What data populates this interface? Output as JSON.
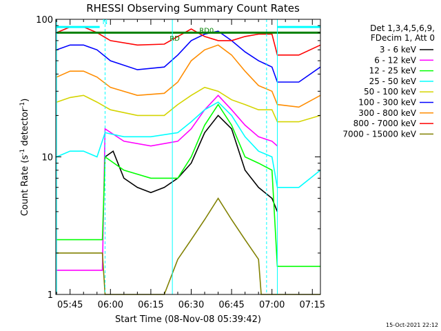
{
  "chart_data": {
    "type": "line",
    "title": "RHESSI Observing Summary Count Rates",
    "xlabel": "Start Time (08-Nov-08 05:39:42)",
    "ylabel_main": "Count Rate (s",
    "ylabel_sup1": "-1",
    "ylabel_mid": " detector",
    "ylabel_sup2": "-1",
    "ylabel_end": ")",
    "y_scale": "log",
    "ylim": [
      1,
      100
    ],
    "x_range_minutes": [
      "05:39:42",
      "07:18:00"
    ],
    "x_ticks": [
      "05:45",
      "06:00",
      "06:15",
      "06:30",
      "06:45",
      "07:00",
      "07:15"
    ],
    "y_ticks": [
      "1",
      "10",
      "100"
    ],
    "info_line1": "Det 1,3,4,5,6,9,",
    "info_line2": "FDecim 1, Att 0",
    "footer_date": "15-Oct-2021 22:12",
    "annotations": [
      {
        "label": "N",
        "color": "#00ffff",
        "x": "05:57",
        "y": 92
      },
      {
        "label": "RD",
        "color": "#008000",
        "x": "06:22",
        "y": 70
      },
      {
        "label": "RD0",
        "color": "#008000",
        "x": "06:33",
        "y": 80
      }
    ],
    "series": [
      {
        "name": "3 - 6 keV",
        "color": "#000000",
        "x": [
          "05:58",
          "06:01",
          "06:05",
          "06:10",
          "06:15",
          "06:20",
          "06:25",
          "06:30",
          "06:35",
          "06:40",
          "06:45",
          "06:50",
          "06:55",
          "07:00",
          "07:02"
        ],
        "y": [
          10,
          11,
          7,
          6,
          5.5,
          6,
          7,
          9,
          15,
          20,
          16,
          8,
          6,
          5,
          4
        ]
      },
      {
        "name": "6 - 12 keV",
        "color": "#ff00ff",
        "x": [
          "05:40",
          "05:50",
          "05:57",
          "05:58",
          "06:05",
          "06:15",
          "06:25",
          "06:30",
          "06:35",
          "06:40",
          "06:45",
          "06:50",
          "06:55",
          "07:00",
          "07:02"
        ],
        "y": [
          1.5,
          1.5,
          1.5,
          16,
          13,
          12,
          13,
          16,
          22,
          28,
          22,
          17,
          14,
          13,
          12
        ]
      },
      {
        "name": "12 - 25 keV",
        "color": "#00ff00",
        "x": [
          "05:40",
          "05:50",
          "05:57",
          "05:58",
          "06:05",
          "06:15",
          "06:25",
          "06:30",
          "06:35",
          "06:40",
          "06:45",
          "06:50",
          "06:55",
          "07:00",
          "07:02",
          "07:10",
          "07:18"
        ],
        "y": [
          2.5,
          2.5,
          2.5,
          10,
          8,
          7,
          7,
          10,
          17,
          24,
          17,
          10,
          9,
          8,
          1.6,
          1.6,
          1.6
        ]
      },
      {
        "name": "25 - 50 keV",
        "color": "#00ffff",
        "x": [
          "05:40",
          "05:45",
          "05:50",
          "05:55",
          "05:58",
          "06:05",
          "06:15",
          "06:25",
          "06:30",
          "06:35",
          "06:40",
          "06:45",
          "06:50",
          "06:55",
          "07:00",
          "07:02",
          "07:10",
          "07:18"
        ],
        "y": [
          10,
          11,
          11,
          10,
          15,
          14,
          14,
          15,
          18,
          22,
          25,
          20,
          14,
          11,
          10,
          6,
          6,
          8
        ]
      },
      {
        "name": "50 - 100 keV",
        "color": "#d4d400",
        "x": [
          "05:40",
          "05:45",
          "05:50",
          "05:55",
          "06:00",
          "06:10",
          "06:20",
          "06:25",
          "06:30",
          "06:35",
          "06:40",
          "06:45",
          "06:50",
          "06:55",
          "07:00",
          "07:02",
          "07:10",
          "07:18"
        ],
        "y": [
          25,
          27,
          28,
          25,
          22,
          20,
          20,
          24,
          28,
          32,
          30,
          26,
          24,
          22,
          22,
          18,
          18,
          20
        ]
      },
      {
        "name": "100 - 300 keV",
        "color": "#0000ff",
        "x": [
          "05:40",
          "05:45",
          "05:50",
          "05:55",
          "06:00",
          "06:10",
          "06:20",
          "06:25",
          "06:30",
          "06:35",
          "06:40",
          "06:45",
          "06:50",
          "06:55",
          "07:00",
          "07:02",
          "07:10",
          "07:18"
        ],
        "y": [
          60,
          65,
          65,
          60,
          50,
          43,
          45,
          55,
          70,
          78,
          82,
          70,
          58,
          50,
          45,
          35,
          35,
          45
        ]
      },
      {
        "name": "300 - 800 keV",
        "color": "#ff8c00",
        "x": [
          "05:40",
          "05:45",
          "05:50",
          "05:55",
          "06:00",
          "06:10",
          "06:20",
          "06:25",
          "06:30",
          "06:35",
          "06:40",
          "06:45",
          "06:50",
          "06:55",
          "07:00",
          "07:02",
          "07:10",
          "07:18"
        ],
        "y": [
          38,
          42,
          42,
          38,
          32,
          28,
          29,
          35,
          50,
          60,
          65,
          55,
          42,
          33,
          30,
          24,
          23,
          28
        ]
      },
      {
        "name": "800 - 7000 keV",
        "color": "#ff0000",
        "x": [
          "05:40",
          "05:45",
          "05:50",
          "05:55",
          "06:00",
          "06:10",
          "06:20",
          "06:25",
          "06:30",
          "06:35",
          "06:40",
          "06:45",
          "06:50",
          "06:55",
          "07:00",
          "07:02",
          "07:10",
          "07:18"
        ],
        "y": [
          80,
          88,
          88,
          80,
          70,
          65,
          66,
          75,
          85,
          75,
          70,
          70,
          75,
          78,
          78,
          55,
          55,
          65
        ]
      },
      {
        "name": "7000 - 15000 keV",
        "color": "#808000",
        "x": [
          "05:40",
          "05:50",
          "05:57",
          "05:58",
          "06:20",
          "06:25",
          "06:30",
          "06:35",
          "06:40",
          "06:45",
          "06:50",
          "06:55",
          "06:56",
          "07:18"
        ],
        "y": [
          2,
          2,
          2,
          1,
          1,
          1.8,
          2.5,
          3.5,
          5,
          3.5,
          2.5,
          1.8,
          1,
          1
        ]
      }
    ],
    "status_bars": [
      {
        "label": "RD0",
        "color": "#008000",
        "x_start": "05:39:42",
        "x_end": "07:18:00",
        "y": 80
      },
      {
        "label": "N",
        "color": "#00ffff",
        "x_start": "05:39:42",
        "x_end": "05:56:00",
        "y": 88
      },
      {
        "label": "N",
        "color": "#00ffff",
        "x_start": "07:02:00",
        "x_end": "07:18:00",
        "y": 88
      }
    ],
    "vlines_solid": [
      "05:40",
      "06:23",
      "07:02"
    ],
    "vlines_dashed": [
      "05:58",
      "06:58",
      "07:18"
    ]
  }
}
